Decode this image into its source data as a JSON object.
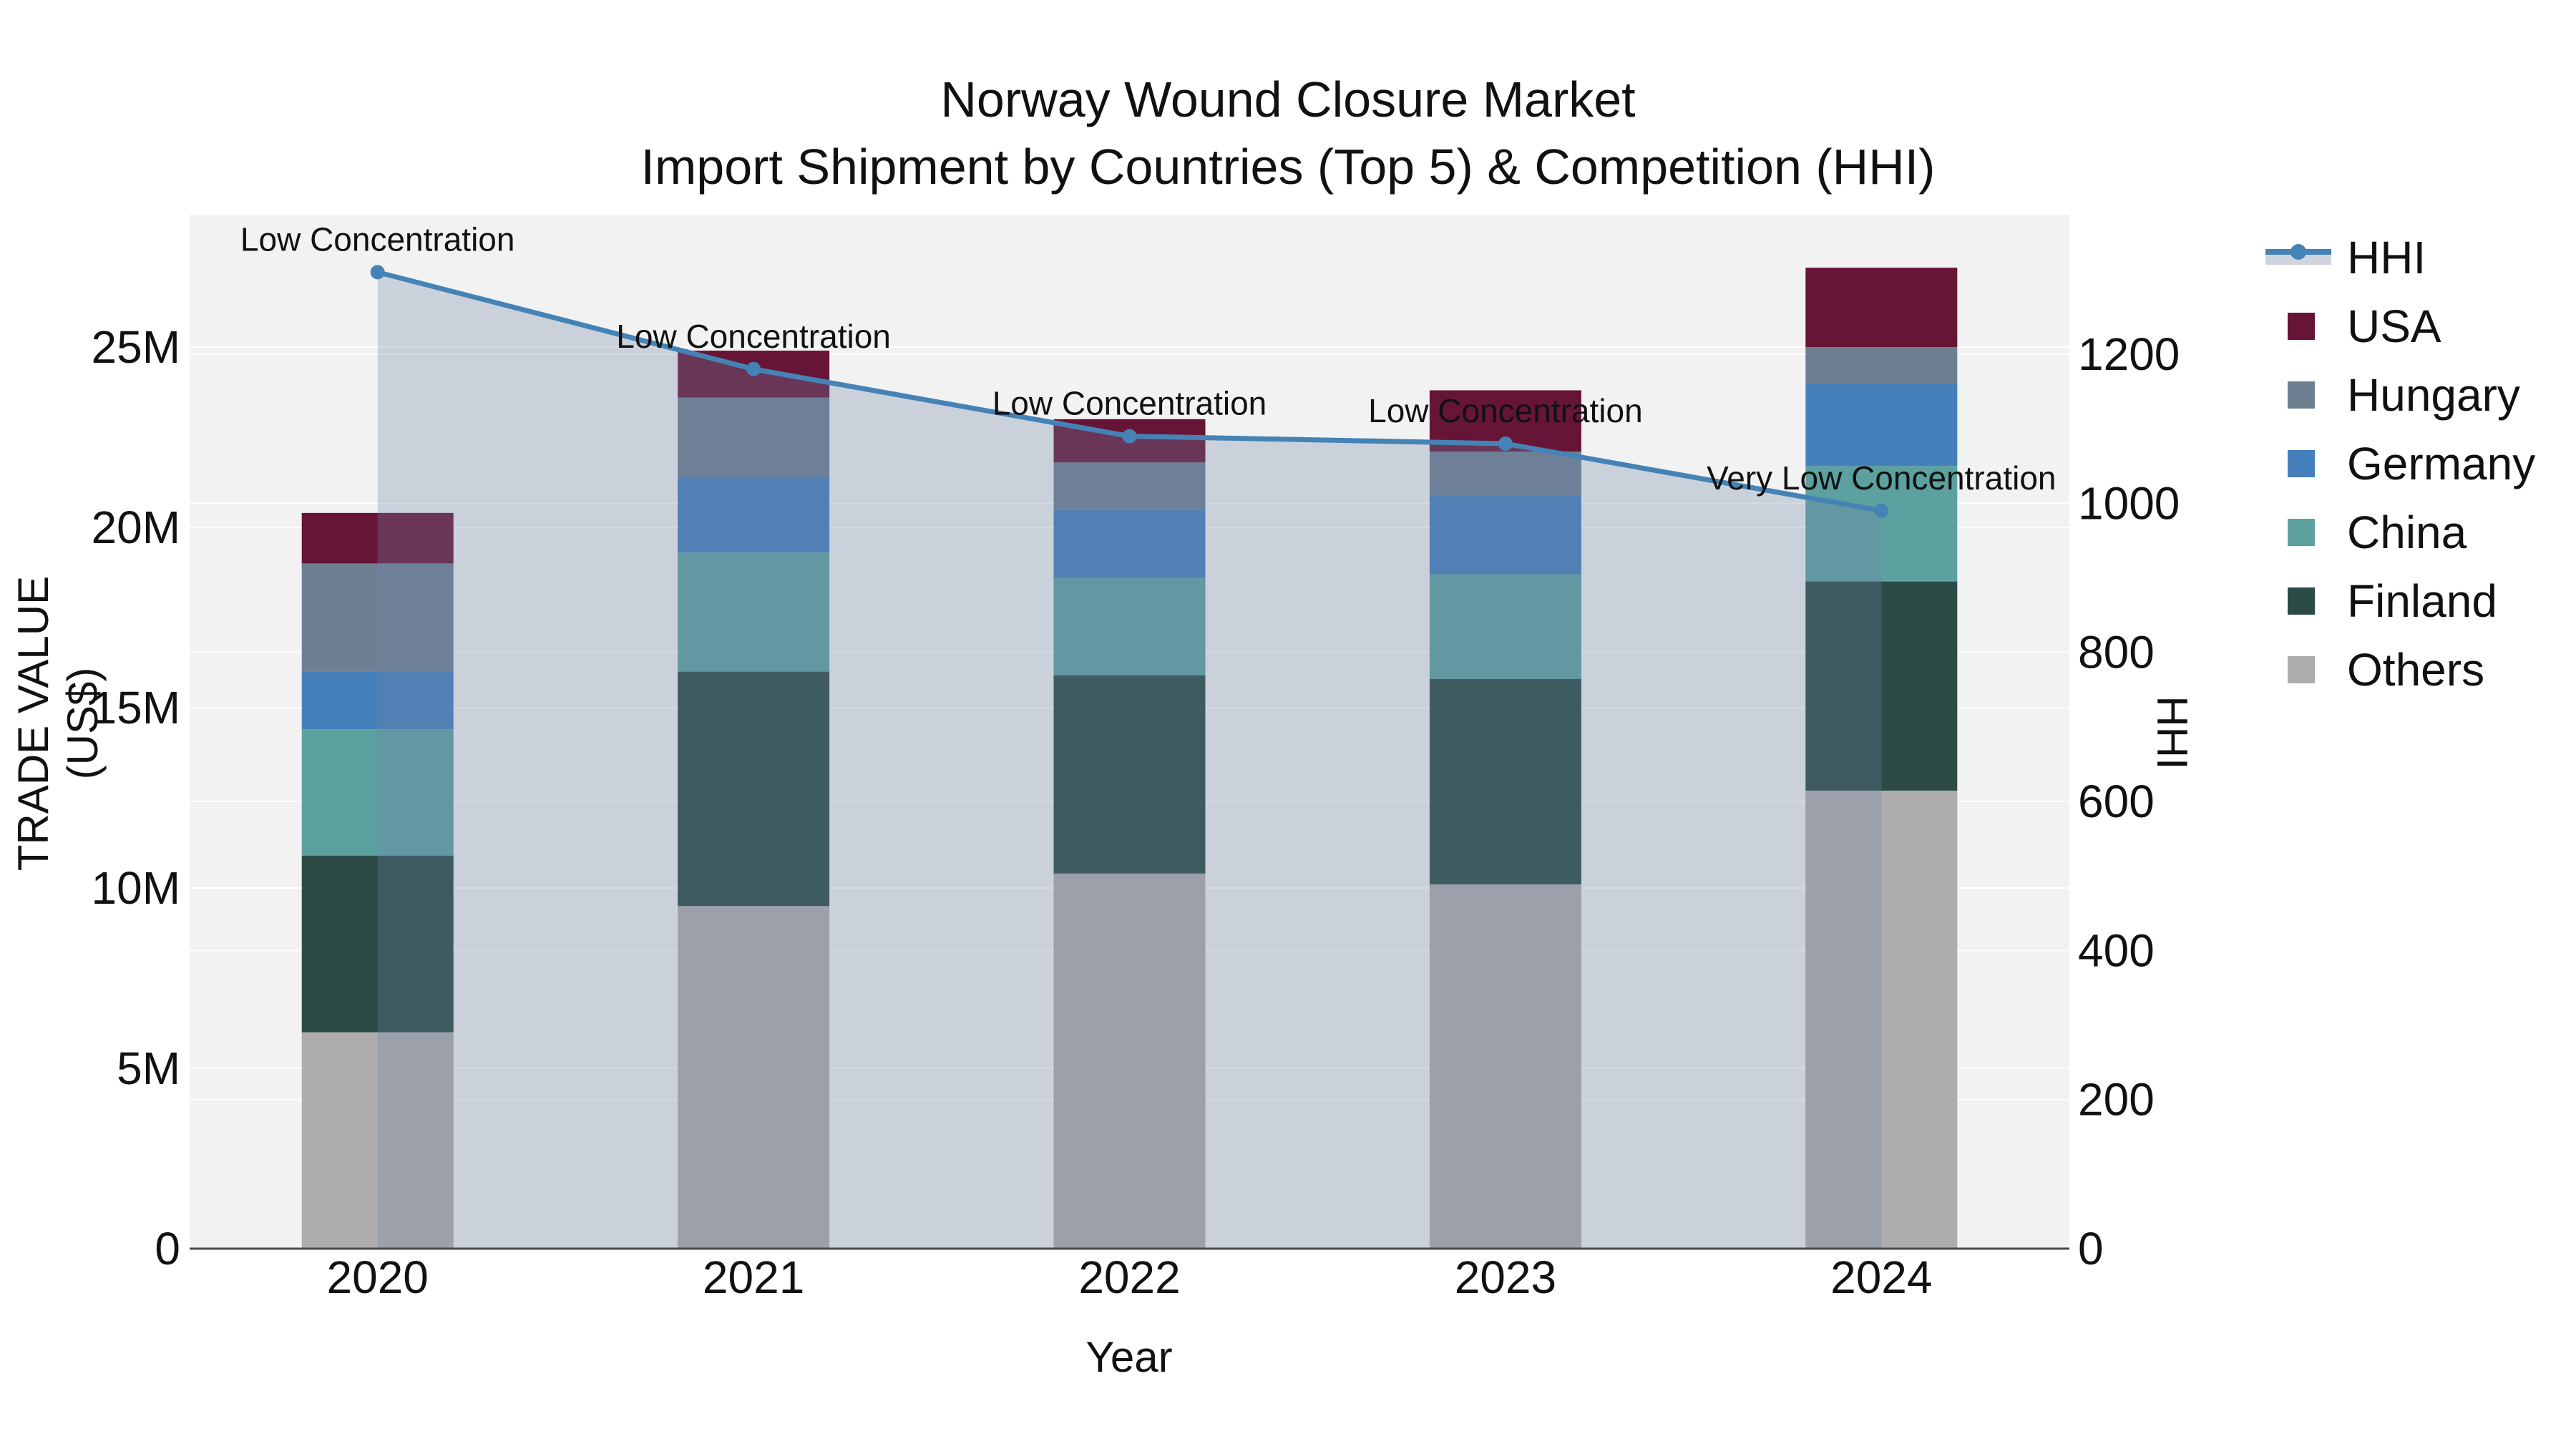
{
  "title": {
    "line1": "Norway Wound Closure Market",
    "line2": "Import Shipment by Countries (Top 5) & Competition (HHI)"
  },
  "axes": {
    "x": {
      "title": "Year",
      "ticks": [
        "2020",
        "2021",
        "2022",
        "2023",
        "2024"
      ]
    },
    "y_left": {
      "title": "TRADE VALUE (US$)",
      "tick_labels": [
        "0",
        "5M",
        "10M",
        "15M",
        "20M",
        "25M"
      ],
      "tick_values_millions": [
        0,
        5,
        10,
        15,
        20,
        25
      ],
      "range_millions": [
        0,
        28.7
      ]
    },
    "y_right": {
      "title": "HHI",
      "tick_labels": [
        "0",
        "200",
        "400",
        "600",
        "800",
        "1000",
        "1200"
      ],
      "tick_values": [
        0,
        200,
        400,
        600,
        800,
        1000,
        1200
      ],
      "range": [
        0,
        1387
      ]
    }
  },
  "legend": {
    "position": "right",
    "items": [
      {
        "label": "HHI",
        "type": "line-area",
        "color": "#4583b6",
        "band_color": "#cdd4de"
      },
      {
        "label": "USA",
        "type": "swatch",
        "color": "#671536"
      },
      {
        "label": "Hungary",
        "type": "swatch",
        "color": "#6e7f92"
      },
      {
        "label": "Germany",
        "type": "swatch",
        "color": "#4580bb"
      },
      {
        "label": "China",
        "type": "swatch",
        "color": "#5ca19f"
      },
      {
        "label": "Finland",
        "type": "swatch",
        "color": "#2c4a46"
      },
      {
        "label": "Others",
        "type": "swatch",
        "color": "#afadac"
      }
    ]
  },
  "chart_data": {
    "type": "bar+line",
    "title": "Norway Wound Closure Market — Import Shipment by Countries (Top 5) & Competition (HHI)",
    "categories": [
      "2020",
      "2021",
      "2022",
      "2023",
      "2024"
    ],
    "bar_unit": "US$ millions (left axis)",
    "stack_order_bottom_to_top": [
      "Others",
      "Finland",
      "China",
      "Germany",
      "Hungary",
      "USA"
    ],
    "series": [
      {
        "name": "Others",
        "color": "#afadac",
        "values": [
          6.0,
          9.5,
          10.4,
          10.1,
          12.7
        ]
      },
      {
        "name": "Finland",
        "color": "#2c4a46",
        "values": [
          4.9,
          6.5,
          5.5,
          5.7,
          5.8
        ]
      },
      {
        "name": "China",
        "color": "#5ca19f",
        "values": [
          3.5,
          3.3,
          2.7,
          2.9,
          3.2
        ]
      },
      {
        "name": "Germany",
        "color": "#4580bb",
        "values": [
          1.6,
          2.1,
          1.9,
          2.2,
          2.3
        ]
      },
      {
        "name": "Hungary",
        "color": "#6e7f92",
        "values": [
          3.0,
          2.2,
          1.3,
          1.2,
          1.0
        ]
      },
      {
        "name": "USA",
        "color": "#671536",
        "values": [
          1.4,
          1.3,
          1.2,
          1.7,
          2.2
        ]
      }
    ],
    "bar_totals_millions": [
      20.4,
      24.9,
      23.0,
      23.8,
      27.2
    ],
    "hhi": {
      "name": "HHI",
      "axis": "right",
      "line_color": "#4583b6",
      "fill_color": "rgba(110,132,165,0.30)",
      "values": [
        1310,
        1180,
        1090,
        1080,
        990
      ]
    },
    "annotations": [
      {
        "x": "2020",
        "text": "Low Concentration"
      },
      {
        "x": "2021",
        "text": "Low Concentration"
      },
      {
        "x": "2022",
        "text": "Low Concentration"
      },
      {
        "x": "2023",
        "text": "Low Concentration"
      },
      {
        "x": "2024",
        "text": "Very Low Concentration"
      }
    ],
    "grid": true,
    "legend_position": "right"
  },
  "colors": {
    "plot_background": "#f2f2f2",
    "gridline": "#ffffff",
    "axis_line": "#4a4a4a",
    "text": "#111111"
  }
}
